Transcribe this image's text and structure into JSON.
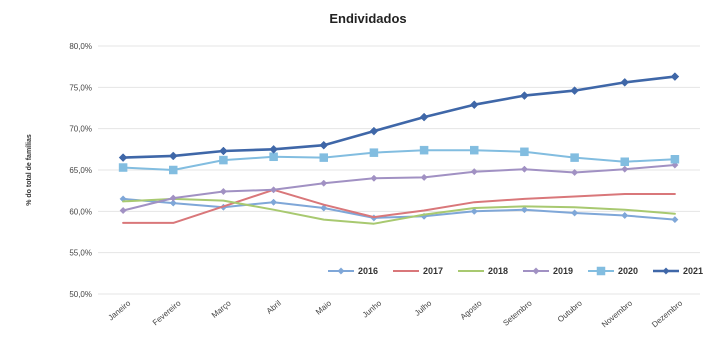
{
  "chart_data": {
    "type": "line",
    "title": "Endividados",
    "ylabel": "% do total de famílias",
    "xlabel": "",
    "categories": [
      "Janeiro",
      "Fevereiro",
      "Março",
      "Abril",
      "Maio",
      "Junho",
      "Julho",
      "Agosto",
      "Setembro",
      "Outubro",
      "Novembro",
      "Dezembro"
    ],
    "y_ticks": [
      "50,0%",
      "55,0%",
      "60,0%",
      "65,0%",
      "70,0%",
      "75,0%",
      "80,0%"
    ],
    "ylim": [
      50,
      80
    ],
    "grid": true,
    "legend_position": "bottom-right",
    "series": [
      {
        "name": "2016",
        "color": "#7fa7d8",
        "marker": "diamond",
        "values": [
          61.5,
          61.0,
          60.5,
          61.1,
          60.4,
          59.2,
          59.4,
          60.0,
          60.2,
          59.8,
          59.5,
          59.0
        ]
      },
      {
        "name": "2017",
        "color": "#d9777a",
        "marker": "none",
        "values": [
          58.6,
          58.6,
          60.6,
          62.6,
          60.8,
          59.3,
          60.1,
          61.1,
          61.5,
          61.8,
          62.1,
          62.1
        ]
      },
      {
        "name": "2018",
        "color": "#a8c970",
        "marker": "none",
        "values": [
          61.2,
          61.5,
          61.3,
          60.2,
          59.0,
          58.5,
          59.6,
          60.4,
          60.6,
          60.5,
          60.2,
          59.7
        ]
      },
      {
        "name": "2019",
        "color": "#a191c3",
        "marker": "diamond",
        "values": [
          60.1,
          61.6,
          62.4,
          62.6,
          63.4,
          64.0,
          64.1,
          64.8,
          65.1,
          64.7,
          65.1,
          65.6
        ]
      },
      {
        "name": "2020",
        "color": "#82bde0",
        "marker": "square",
        "values": [
          65.3,
          65.0,
          66.2,
          66.6,
          66.5,
          67.1,
          67.4,
          67.4,
          67.2,
          66.5,
          66.0,
          66.3
        ]
      },
      {
        "name": "2021",
        "color": "#3f67a8",
        "marker": "diamond",
        "values": [
          66.5,
          66.7,
          67.3,
          67.5,
          68.0,
          69.7,
          71.4,
          72.9,
          74.0,
          74.6,
          75.6,
          76.3
        ]
      }
    ]
  }
}
